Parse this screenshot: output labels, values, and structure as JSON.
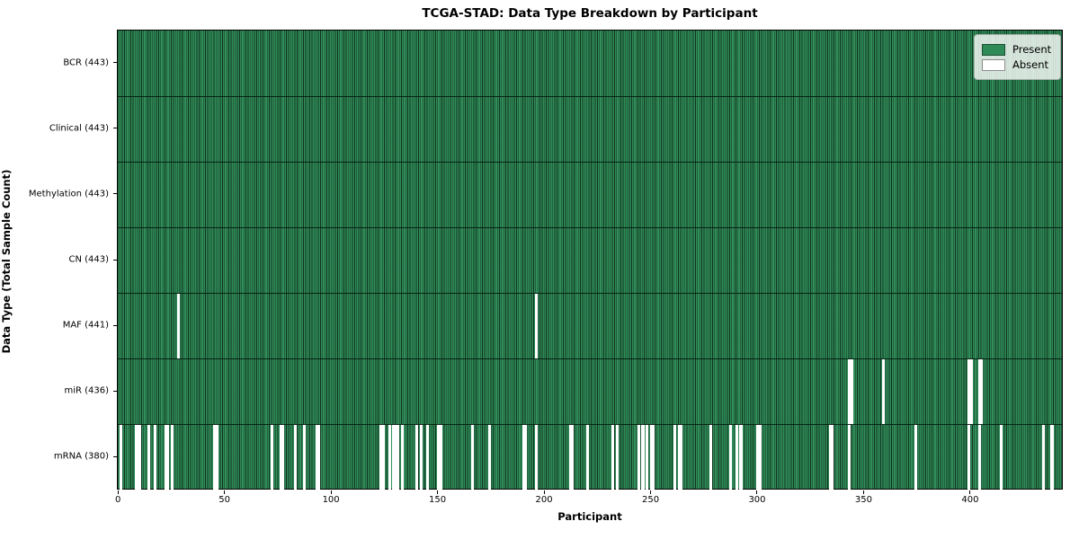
{
  "title": "TCGA-STAD: Data Type Breakdown by Participant",
  "x_axis_label": "Participant",
  "y_axis_label": "Data Type (Total Sample Count)",
  "legend": {
    "present_label": "Present",
    "absent_label": "Absent"
  },
  "colors": {
    "present": "#2e8b57",
    "absent": "#ffffff",
    "bar_edge": "#0a2012",
    "legend_background": "#dfe9e1"
  },
  "chart_data": {
    "type": "heatmap",
    "title": "TCGA-STAD: Data Type Breakdown by Participant",
    "xlabel": "Participant",
    "ylabel": "Data Type (Total Sample Count)",
    "x_ticks": [
      0,
      50,
      100,
      150,
      200,
      250,
      300,
      350,
      400
    ],
    "xlim": [
      -0.5,
      443.5
    ],
    "n_participants": 443,
    "legend_position": "upper right",
    "legend_entries": [
      "Present",
      "Absent"
    ],
    "rows": [
      {
        "label": "BCR (443)",
        "data_type": "BCR",
        "present_count": 443,
        "absent_participants": []
      },
      {
        "label": "Clinical (443)",
        "data_type": "Clinical",
        "present_count": 443,
        "absent_participants": []
      },
      {
        "label": "Methylation (443)",
        "data_type": "Methylation",
        "present_count": 443,
        "absent_participants": []
      },
      {
        "label": "CN (443)",
        "data_type": "CN",
        "present_count": 443,
        "absent_participants": []
      },
      {
        "label": "MAF (441)",
        "data_type": "MAF",
        "present_count": 441,
        "absent_participants": [
          28,
          196
        ]
      },
      {
        "label": "miR (436)",
        "data_type": "miR",
        "present_count": 436,
        "absent_participants": [
          343,
          344,
          359,
          399,
          400,
          404,
          405
        ]
      },
      {
        "label": "mRNA (380)",
        "data_type": "mRNA",
        "present_count": 380,
        "absent_participants": [
          1,
          8,
          9,
          10,
          14,
          17,
          22,
          23,
          25,
          45,
          46,
          72,
          76,
          77,
          83,
          87,
          93,
          94,
          123,
          124,
          127,
          129,
          130,
          131,
          133,
          140,
          142,
          145,
          150,
          151,
          166,
          174,
          190,
          191,
          196,
          212,
          213,
          220,
          232,
          234,
          244,
          246,
          248,
          250,
          251,
          261,
          263,
          264,
          278,
          287,
          290,
          292,
          300,
          301,
          334,
          335,
          343,
          374,
          399,
          404,
          414,
          434,
          438
        ]
      }
    ]
  }
}
